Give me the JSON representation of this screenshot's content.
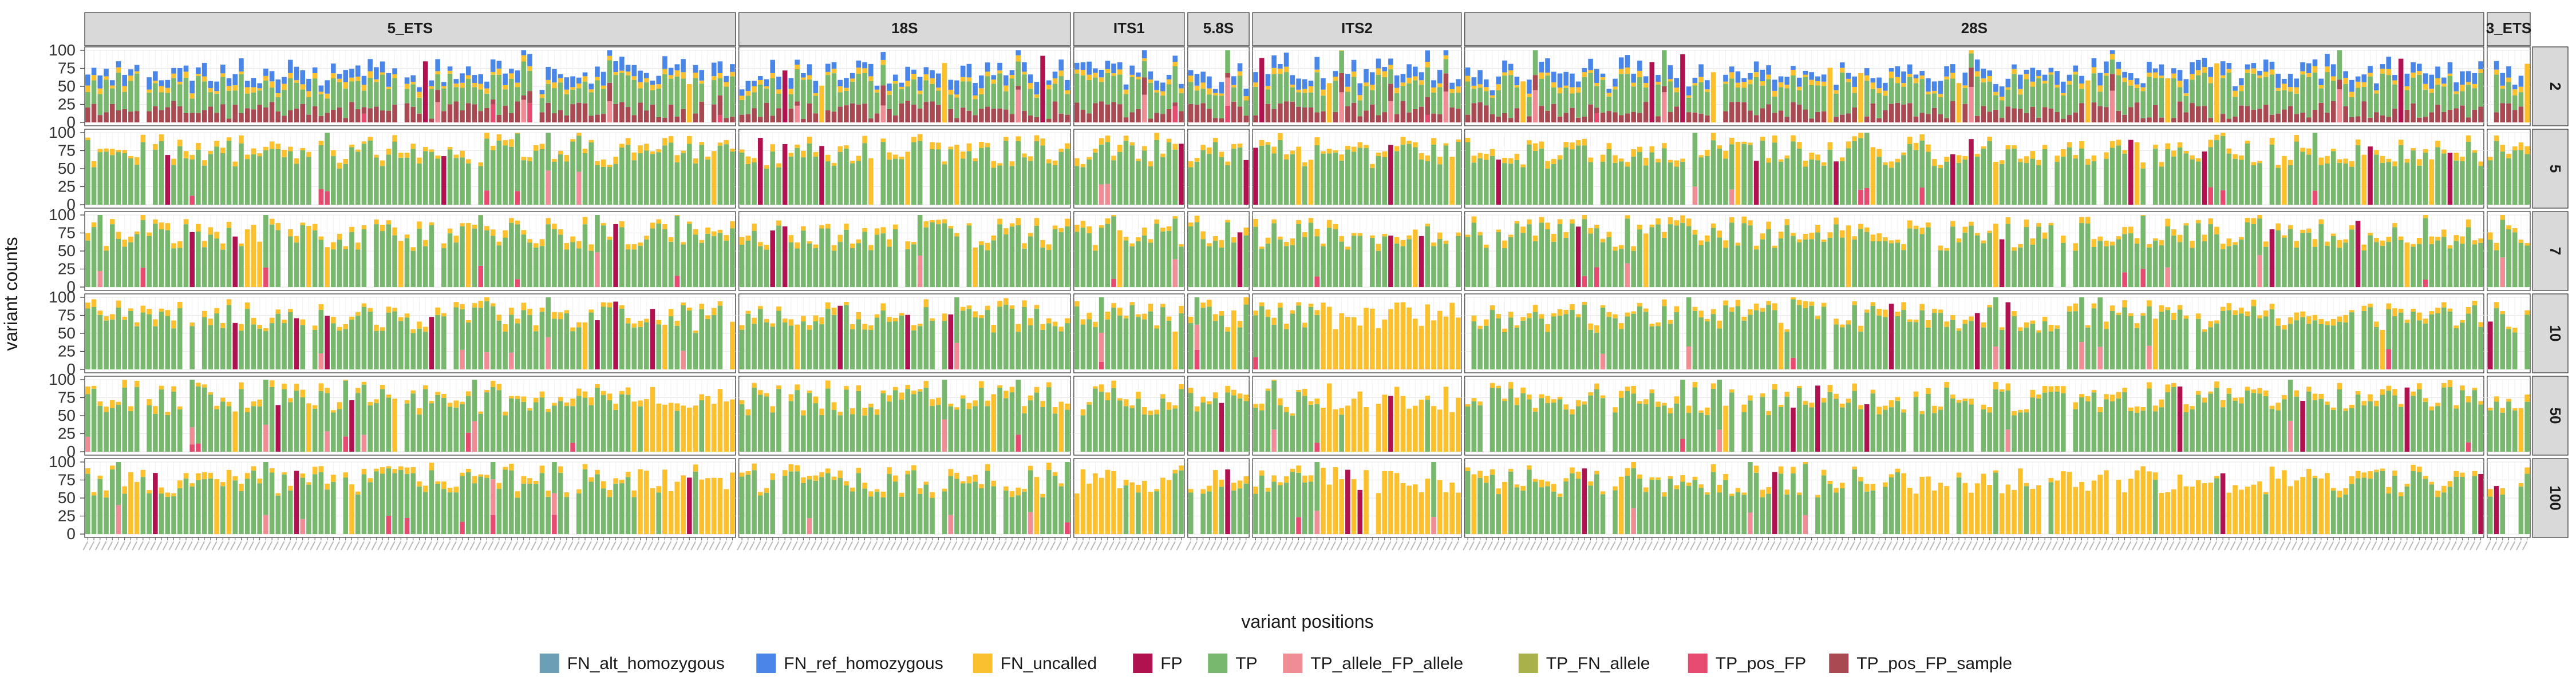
{
  "chart_data": {
    "type": "bar",
    "stacked": true,
    "faceted": true,
    "xlabel": "variant positions",
    "ylabel": "variant counts",
    "ylim": [
      0,
      100
    ],
    "y_ticks": [
      0,
      25,
      50,
      75,
      100
    ],
    "grid": true,
    "legend_position": "bottom",
    "column_facets": [
      {
        "label": "5_ETS",
        "bars": 106
      },
      {
        "label": "18S",
        "bars": 54
      },
      {
        "label": "ITS1",
        "bars": 18
      },
      {
        "label": "5.8S",
        "bars": 10
      },
      {
        "label": "ITS2",
        "bars": 34
      },
      {
        "label": "28S",
        "bars": 166
      },
      {
        "label": "3_ETS",
        "bars": 7
      }
    ],
    "row_facets": [
      "2",
      "5",
      "7",
      "10",
      "50",
      "100"
    ],
    "series": [
      {
        "name": "FN_alt_homozygous",
        "color": "#6a9fb5"
      },
      {
        "name": "FN_ref_homozygous",
        "color": "#4a86e8"
      },
      {
        "name": "FN_uncalled",
        "color": "#fbc02d"
      },
      {
        "name": "FP",
        "color": "#b0124f"
      },
      {
        "name": "TP",
        "color": "#77b86e"
      },
      {
        "name": "TP_allele_FP_allele",
        "color": "#ee8e94"
      },
      {
        "name": "TP_FN_allele",
        "color": "#a9b24a"
      },
      {
        "name": "TP_pos_FP",
        "color": "#e64a6e"
      },
      {
        "name": "TP_pos_FP_sample",
        "color": "#a94a52"
      }
    ],
    "note": "Individual per-position values are too dense to read; values approximate: TP ~60-90, FN_uncalled ~5-20, FN_ref_homozygous ~10-30 at coverage 2, with FN_uncalled dominating several regions at coverage 10/50/100."
  }
}
